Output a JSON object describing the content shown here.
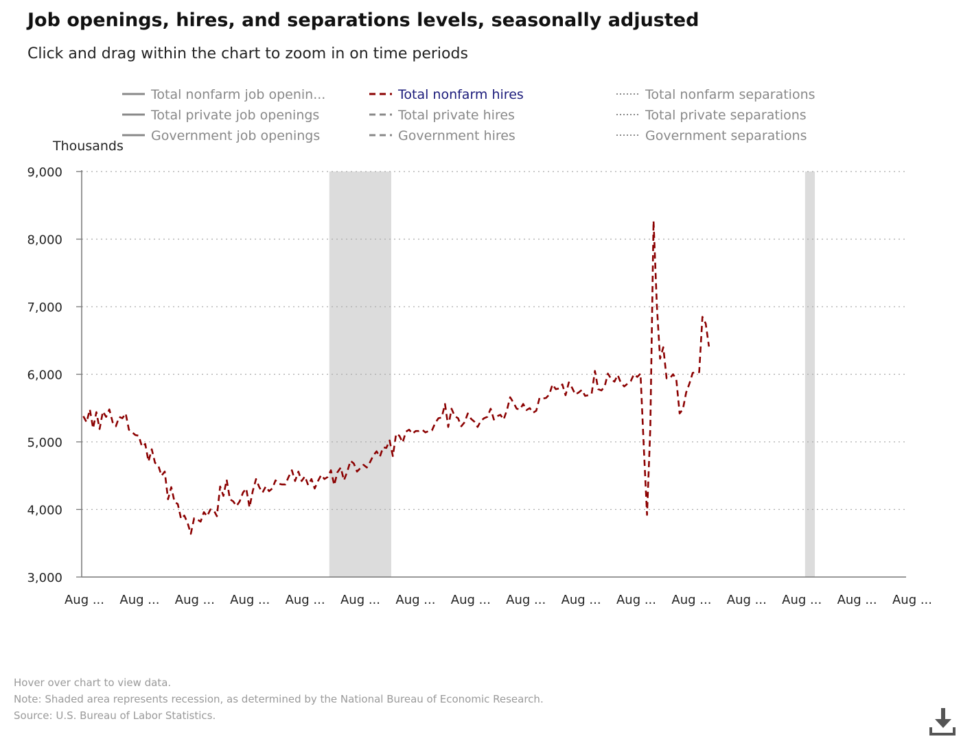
{
  "title": "Job openings, hires, and separations levels, seasonally adjusted",
  "subtitle": "Click and drag within the chart to zoom in on time periods",
  "notes": {
    "hover": "Hover over chart to view data.",
    "note": "Note: Shaded area represents recession, as determined by the National Bureau of Economic Research.",
    "source": "Source: U.S. Bureau of Labor Statistics."
  },
  "download_icon": "download-icon",
  "colors": {
    "hires": "#8b0000",
    "legend_inactive": "#888888",
    "legend_active": "#1a1a7a",
    "recession": "#dcdcdc",
    "grid": "#aaaaaa"
  },
  "chart_data": {
    "type": "line",
    "unit_label": "Thousands",
    "ylim": [
      3000,
      9000
    ],
    "yticks": [
      "3,000",
      "4,000",
      "5,000",
      "6,000",
      "7,000",
      "8,000",
      "9,000"
    ],
    "xlim": [
      "2001-08",
      "2022-08"
    ],
    "xtick_labels": [
      "Aug ...",
      "Aug ...",
      "Aug ...",
      "Aug ...",
      "Aug ...",
      "Aug ...",
      "Aug ...",
      "Aug ...",
      "Aug ...",
      "Aug ...",
      "Aug ...",
      "Aug ...",
      "Aug ...",
      "Aug ...",
      "Aug ...",
      "Aug ..."
    ],
    "xtick_dates": [
      "2001-08",
      "2002-08",
      "2003-08",
      "2004-08",
      "2005-08",
      "2006-08",
      "2007-08",
      "2008-08",
      "2009-08",
      "2010-08",
      "2011-08",
      "2012-08",
      "2013-08",
      "2014-08",
      "2015-08",
      "2016-08"
    ],
    "grid": true,
    "legend_placement": "top",
    "legend": [
      {
        "label": "Total nonfarm job openin...",
        "style": "solid",
        "active": false
      },
      {
        "label": "Total nonfarm hires",
        "style": "dashed",
        "active": true
      },
      {
        "label": "Total nonfarm separations",
        "style": "dotted",
        "active": false
      },
      {
        "label": "Total private job openings",
        "style": "solid",
        "active": false
      },
      {
        "label": "Total private hires",
        "style": "dashed",
        "active": false
      },
      {
        "label": "Total private separations",
        "style": "dotted",
        "active": false
      },
      {
        "label": "Government job openings",
        "style": "solid",
        "active": false
      },
      {
        "label": "Government hires",
        "style": "dashed",
        "active": false
      },
      {
        "label": "Government separations",
        "style": "dotted",
        "active": false
      }
    ],
    "recessions": [
      {
        "start": "2007-12",
        "end": "2009-06"
      },
      {
        "start": "2020-02",
        "end": "2020-04"
      }
    ],
    "series": [
      {
        "name": "Total nonfarm hires",
        "style": "dashed",
        "start": "2001-08",
        "frequency": "monthly",
        "values": [
          5380,
          5290,
          5480,
          5200,
          5440,
          5190,
          5450,
          5370,
          5480,
          5290,
          5230,
          5370,
          5350,
          5420,
          5180,
          5140,
          5100,
          5090,
          4930,
          4970,
          4710,
          4890,
          4690,
          4650,
          4500,
          4560,
          4150,
          4330,
          4110,
          4080,
          3860,
          3910,
          3800,
          3640,
          3870,
          3850,
          3820,
          3960,
          3900,
          4000,
          3990,
          3900,
          4340,
          4200,
          4440,
          4150,
          4120,
          4050,
          4120,
          4250,
          4310,
          4030,
          4270,
          4450,
          4330,
          4250,
          4340,
          4270,
          4310,
          4430,
          4380,
          4370,
          4370,
          4480,
          4580,
          4420,
          4560,
          4420,
          4490,
          4360,
          4450,
          4310,
          4420,
          4510,
          4450,
          4480,
          4580,
          4360,
          4550,
          4620,
          4430,
          4560,
          4720,
          4680,
          4560,
          4610,
          4660,
          4620,
          4700,
          4800,
          4860,
          4780,
          4920,
          4910,
          5020,
          4790,
          5120,
          5090,
          4990,
          5150,
          5180,
          5120,
          5160,
          5160,
          5180,
          5140,
          5160,
          5170,
          5280,
          5350,
          5360,
          5560,
          5220,
          5490,
          5380,
          5350,
          5230,
          5290,
          5420,
          5340,
          5300,
          5220,
          5310,
          5350,
          5370,
          5490,
          5330,
          5380,
          5400,
          5330,
          5470,
          5660,
          5580,
          5490,
          5480,
          5560,
          5470,
          5500,
          5430,
          5460,
          5650,
          5640,
          5650,
          5700,
          5850,
          5780,
          5790,
          5850,
          5690,
          5880,
          5800,
          5700,
          5730,
          5770,
          5680,
          5690,
          5710,
          6050,
          5780,
          5760,
          5820,
          6010,
          5930,
          5890,
          5990,
          5870,
          5820,
          5860,
          5900,
          6000,
          5960,
          6010,
          4920,
          3920,
          5210,
          8270,
          7020,
          6230,
          6400,
          5940,
          5940,
          6000,
          5920,
          5420,
          5480,
          5730,
          5860,
          6020,
          6030,
          6030,
          6850,
          6750,
          6410
        ]
      }
    ]
  }
}
